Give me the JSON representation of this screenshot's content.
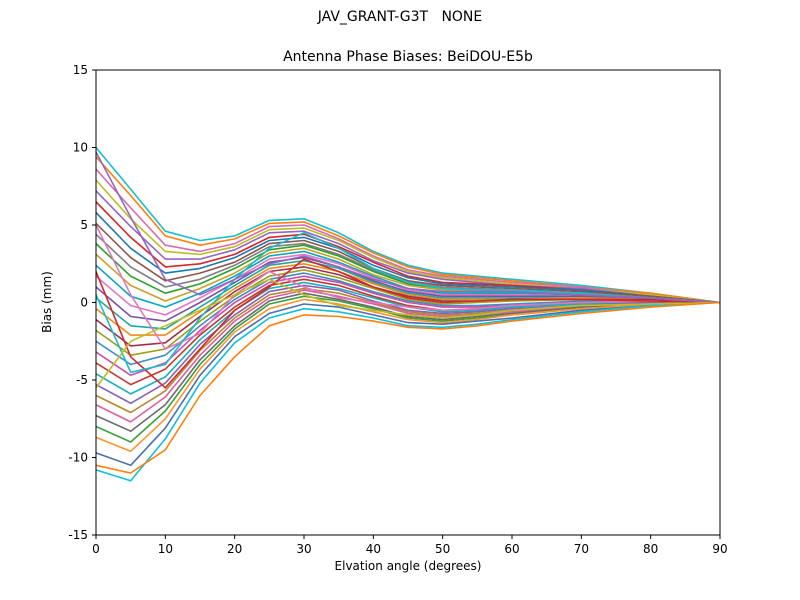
{
  "figure": {
    "suptitle": "JAV_GRANT-G3T   NONE",
    "title": "Antenna Phase Biases: BeiDOU-E5b",
    "xlabel": "Elvation angle (degrees)",
    "ylabel": "Bias (mm)"
  },
  "chart_data": {
    "type": "line",
    "suptitle": "JAV_GRANT-G3T   NONE",
    "title": "Antenna Phase Biases: BeiDOU-E5b",
    "xlabel": "Elvation angle (degrees)",
    "ylabel": "Bias (mm)",
    "xlim": [
      0,
      90
    ],
    "ylim": [
      -15,
      15
    ],
    "xticks": [
      0,
      10,
      20,
      30,
      40,
      50,
      60,
      70,
      80,
      90
    ],
    "yticks": [
      -15,
      -10,
      -5,
      0,
      5,
      10,
      15
    ],
    "grid": false,
    "legend_position": "none",
    "x": [
      0,
      5,
      10,
      15,
      20,
      25,
      30,
      35,
      40,
      45,
      50,
      55,
      60,
      70,
      80,
      90
    ],
    "series": [
      {
        "name": "line-01",
        "color": "#17becf",
        "values": [
          10.0,
          7.3,
          4.6,
          4.0,
          4.3,
          5.3,
          5.4,
          4.5,
          3.3,
          2.4,
          1.9,
          1.7,
          1.5,
          1.1,
          0.6,
          0.0
        ]
      },
      {
        "name": "line-02",
        "color": "#ff7f0e",
        "values": [
          9.4,
          6.9,
          4.3,
          3.7,
          4.1,
          5.1,
          5.2,
          4.3,
          3.2,
          2.3,
          1.8,
          1.6,
          1.4,
          1.0,
          0.6,
          0.0
        ]
      },
      {
        "name": "line-03",
        "color": "#d66bb0",
        "values": [
          8.6,
          6.1,
          3.7,
          3.3,
          3.8,
          4.9,
          5.0,
          4.1,
          3.0,
          2.1,
          1.7,
          1.5,
          1.3,
          1.0,
          0.5,
          0.0
        ]
      },
      {
        "name": "line-04",
        "color": "#bcbd22",
        "values": [
          7.9,
          5.4,
          3.3,
          3.1,
          3.6,
          4.7,
          4.8,
          4.0,
          2.9,
          2.0,
          1.6,
          1.4,
          1.2,
          0.9,
          0.5,
          0.0
        ]
      },
      {
        "name": "line-05",
        "color": "#9467bd",
        "values": [
          7.2,
          4.9,
          2.8,
          2.8,
          3.4,
          4.5,
          4.6,
          3.8,
          2.7,
          1.9,
          1.5,
          1.3,
          1.1,
          0.9,
          0.4,
          0.0
        ]
      },
      {
        "name": "line-06",
        "color": "#d62728",
        "values": [
          6.5,
          4.2,
          2.3,
          2.5,
          3.1,
          4.2,
          4.4,
          3.6,
          2.6,
          1.7,
          1.3,
          1.2,
          1.1,
          0.8,
          0.4,
          0.0
        ]
      },
      {
        "name": "line-07",
        "color": "#1f77b4",
        "values": [
          5.8,
          3.5,
          1.9,
          2.2,
          2.9,
          4.0,
          4.2,
          3.5,
          2.4,
          1.6,
          1.2,
          1.1,
          1.0,
          0.8,
          0.4,
          0.0
        ]
      },
      {
        "name": "line-08",
        "color": "#8c564b",
        "values": [
          5.1,
          2.9,
          1.4,
          1.9,
          2.6,
          3.8,
          4.0,
          3.3,
          2.2,
          1.4,
          1.1,
          1.0,
          0.9,
          0.7,
          0.4,
          0.0
        ]
      },
      {
        "name": "line-09",
        "color": "#7f7f7f",
        "values": [
          4.4,
          2.3,
          1.0,
          1.5,
          2.4,
          3.6,
          3.8,
          3.1,
          2.1,
          1.3,
          1.0,
          0.9,
          0.8,
          0.6,
          0.3,
          0.0
        ]
      },
      {
        "name": "line-10",
        "color": "#2ca02c",
        "values": [
          3.8,
          1.7,
          0.6,
          1.2,
          2.2,
          3.4,
          3.7,
          3.0,
          2.0,
          1.2,
          0.9,
          0.8,
          0.7,
          0.6,
          0.3,
          0.0
        ]
      },
      {
        "name": "line-11",
        "color": "#c9a227",
        "values": [
          3.1,
          1.1,
          0.1,
          0.9,
          1.9,
          3.2,
          3.5,
          2.8,
          1.8,
          1.1,
          0.8,
          0.7,
          0.7,
          0.5,
          0.3,
          0.0
        ]
      },
      {
        "name": "line-12",
        "color": "#0aa6c2",
        "values": [
          2.4,
          0.4,
          -0.3,
          0.6,
          1.7,
          3.0,
          3.3,
          2.6,
          1.7,
          0.9,
          0.6,
          0.6,
          0.6,
          0.5,
          0.3,
          0.0
        ]
      },
      {
        "name": "line-13",
        "color": "#e377c2",
        "values": [
          1.7,
          -0.2,
          -0.8,
          0.3,
          1.5,
          2.8,
          3.1,
          2.5,
          1.6,
          0.8,
          0.5,
          0.5,
          0.5,
          0.4,
          0.3,
          0.0
        ]
      },
      {
        "name": "line-14",
        "color": "#7a52a3",
        "values": [
          1.0,
          -0.9,
          -1.2,
          0.0,
          1.3,
          2.6,
          2.9,
          2.3,
          1.4,
          0.7,
          0.4,
          0.4,
          0.4,
          0.4,
          0.2,
          0.0
        ]
      },
      {
        "name": "line-15",
        "color": "#1fa99e",
        "values": [
          0.3,
          -1.5,
          -1.7,
          -0.3,
          1.1,
          2.4,
          2.7,
          2.2,
          1.3,
          0.6,
          0.3,
          0.3,
          0.3,
          0.3,
          0.2,
          0.0
        ]
      },
      {
        "name": "line-16",
        "color": "#f08c1a",
        "values": [
          -0.4,
          -2.1,
          -2.1,
          -0.6,
          0.9,
          2.2,
          2.5,
          2.0,
          1.2,
          0.5,
          0.2,
          0.2,
          0.2,
          0.3,
          0.2,
          0.0
        ]
      },
      {
        "name": "line-17",
        "color": "#a03050",
        "values": [
          -1.1,
          -2.8,
          -2.6,
          -0.9,
          0.7,
          2.0,
          2.3,
          1.8,
          1.0,
          0.4,
          0.1,
          0.1,
          0.2,
          0.2,
          0.2,
          0.0
        ]
      },
      {
        "name": "line-18",
        "color": "#9aa018",
        "values": [
          -1.8,
          -3.4,
          -3.0,
          -1.2,
          0.4,
          1.7,
          2.1,
          1.6,
          0.9,
          0.2,
          -0.1,
          0.0,
          0.1,
          0.2,
          0.1,
          0.0
        ]
      },
      {
        "name": "line-19",
        "color": "#3b8ec8",
        "values": [
          -2.5,
          -4.0,
          -3.4,
          -1.5,
          0.2,
          1.5,
          1.9,
          1.4,
          0.7,
          0.1,
          -0.2,
          -0.2,
          -0.1,
          0.1,
          0.1,
          0.0
        ]
      },
      {
        "name": "line-20",
        "color": "#cc4faa",
        "values": [
          -3.2,
          -4.7,
          -3.9,
          -1.8,
          0.0,
          1.3,
          1.7,
          1.3,
          0.6,
          0.0,
          -0.3,
          -0.3,
          -0.2,
          0.0,
          0.1,
          0.0
        ]
      },
      {
        "name": "line-21",
        "color": "#c23b2e",
        "values": [
          -3.9,
          -5.3,
          -4.3,
          -2.1,
          -0.3,
          1.1,
          1.5,
          1.1,
          0.4,
          -0.2,
          -0.5,
          -0.4,
          -0.3,
          0.0,
          0.0,
          0.0
        ]
      },
      {
        "name": "line-22",
        "color": "#15b0bd",
        "values": [
          -4.6,
          -5.9,
          -4.8,
          -2.4,
          -0.5,
          0.9,
          1.3,
          0.9,
          0.3,
          -0.3,
          -0.6,
          -0.5,
          -0.3,
          -0.1,
          0.0,
          0.0
        ]
      },
      {
        "name": "line-23",
        "color": "#8a5fb5",
        "values": [
          -5.3,
          -6.5,
          -5.2,
          -2.7,
          -0.8,
          0.7,
          1.1,
          0.8,
          0.1,
          -0.5,
          -0.7,
          -0.6,
          -0.4,
          -0.2,
          0.0,
          0.0
        ]
      },
      {
        "name": "line-24",
        "color": "#b5892a",
        "values": [
          -6.0,
          -7.1,
          -5.7,
          -3.1,
          -1.0,
          0.5,
          0.9,
          0.6,
          0.0,
          -0.6,
          -0.8,
          -0.7,
          -0.5,
          -0.2,
          -0.1,
          0.0
        ]
      },
      {
        "name": "line-25",
        "color": "#de5fa0",
        "values": [
          -6.6,
          -7.7,
          -6.1,
          -3.4,
          -1.2,
          0.3,
          0.8,
          0.4,
          -0.1,
          -0.7,
          -0.9,
          -0.8,
          -0.6,
          -0.3,
          -0.1,
          0.0
        ]
      },
      {
        "name": "line-26",
        "color": "#6b6b6b",
        "values": [
          -7.3,
          -8.3,
          -6.6,
          -3.7,
          -1.5,
          0.1,
          0.6,
          0.2,
          -0.3,
          -0.9,
          -1.1,
          -0.9,
          -0.7,
          -0.3,
          -0.1,
          0.0
        ]
      },
      {
        "name": "line-27",
        "color": "#3aa03a",
        "values": [
          -8.0,
          -9.0,
          -7.0,
          -4.0,
          -1.7,
          -0.1,
          0.4,
          0.1,
          -0.4,
          -1.0,
          -1.2,
          -1.0,
          -0.8,
          -0.4,
          -0.1,
          0.0
        ]
      },
      {
        "name": "line-28",
        "color": "#ff9330",
        "values": [
          -8.7,
          -9.6,
          -7.5,
          -4.3,
          -1.9,
          -0.4,
          0.2,
          -0.1,
          -0.6,
          -1.1,
          -1.3,
          -1.1,
          -0.8,
          -0.4,
          -0.1,
          0.0
        ]
      },
      {
        "name": "line-29",
        "color": "#4b6fae",
        "values": [
          -9.7,
          -10.5,
          -8.1,
          -4.7,
          -2.2,
          -0.7,
          -0.1,
          -0.3,
          -0.8,
          -1.3,
          -1.4,
          -1.2,
          -1.0,
          -0.5,
          -0.2,
          0.0
        ]
      },
      {
        "name": "line-30",
        "color": "#10c0d8",
        "values": [
          -10.8,
          -11.5,
          -8.8,
          -5.2,
          -2.6,
          -1.0,
          -0.4,
          -0.6,
          -1.0,
          -1.5,
          -1.6,
          -1.4,
          -1.1,
          -0.6,
          -0.2,
          0.0
        ]
      },
      {
        "name": "line-31",
        "color": "#e377c2",
        "values": [
          5.0,
          0.5,
          -3.0,
          -2.0,
          0.5,
          2.0,
          1.0,
          0.3,
          0.0,
          -0.3,
          -0.5,
          -0.4,
          -0.2,
          0.0,
          0.1,
          0.0
        ]
      },
      {
        "name": "line-32",
        "color": "#d62728",
        "values": [
          2.0,
          -3.5,
          -5.5,
          -3.0,
          -0.5,
          1.0,
          2.8,
          2.0,
          1.0,
          0.3,
          0.0,
          0.1,
          0.2,
          0.2,
          0.1,
          0.0
        ]
      },
      {
        "name": "line-33",
        "color": "#17becf",
        "values": [
          0.5,
          -4.5,
          -4.0,
          -1.0,
          1.5,
          3.5,
          4.5,
          3.5,
          2.2,
          1.3,
          0.9,
          0.8,
          0.8,
          0.6,
          0.3,
          0.0
        ]
      },
      {
        "name": "line-34",
        "color": "#9467bd",
        "values": [
          9.7,
          5.5,
          1.5,
          0.5,
          1.5,
          2.5,
          3.0,
          2.3,
          1.5,
          0.9,
          0.7,
          0.7,
          0.7,
          0.5,
          0.3,
          0.0
        ]
      },
      {
        "name": "line-35",
        "color": "#bcbd22",
        "values": [
          -5.5,
          -2.5,
          -1.5,
          -0.5,
          0.5,
          1.5,
          0.5,
          -0.2,
          -0.5,
          -0.8,
          -1.0,
          -0.8,
          -0.5,
          -0.2,
          -0.1,
          0.0
        ]
      },
      {
        "name": "line-36",
        "color": "#ff7f0e",
        "values": [
          -10.5,
          -11.0,
          -9.5,
          -6.0,
          -3.5,
          -1.5,
          -0.8,
          -0.9,
          -1.2,
          -1.6,
          -1.7,
          -1.5,
          -1.2,
          -0.7,
          -0.3,
          0.0
        ]
      }
    ]
  }
}
